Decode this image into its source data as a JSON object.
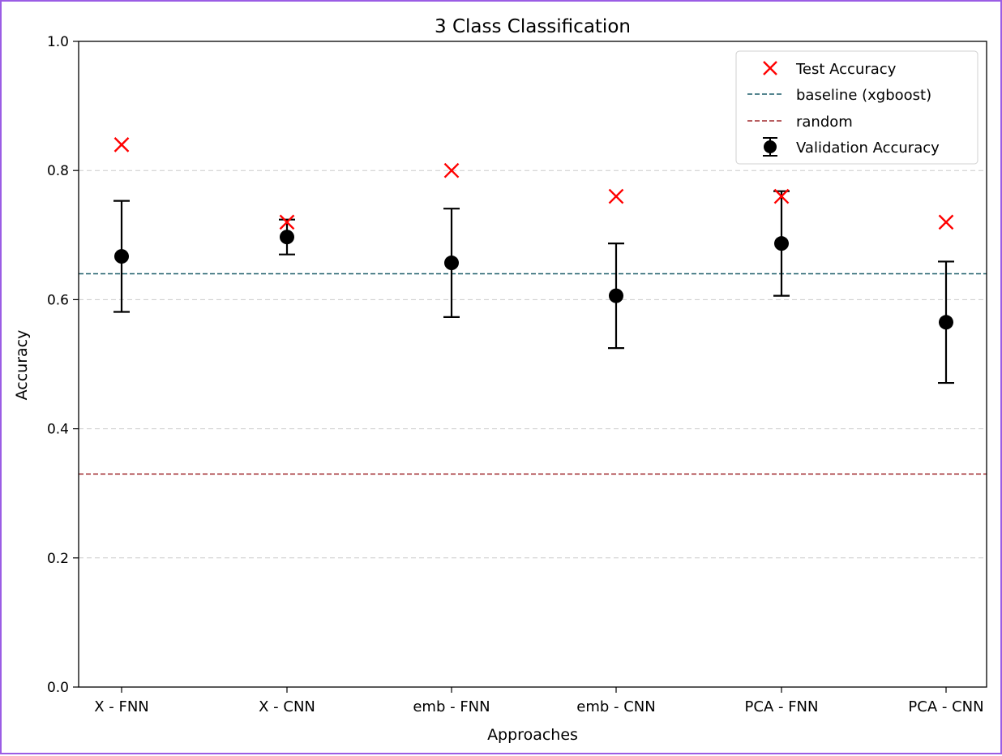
{
  "chart_data": {
    "type": "scatter",
    "title": "3 Class Classification",
    "xlabel": "Approaches",
    "ylabel": "Accuracy",
    "ylim": [
      0.0,
      1.0
    ],
    "yticks": [
      "0.0",
      "0.2",
      "0.4",
      "0.6",
      "0.8",
      "1.0"
    ],
    "grid": "horizontal dashed",
    "legend_position": "top-right",
    "categories": [
      "X - FNN",
      "X - CNN",
      "emb - FNN",
      "emb - CNN",
      "PCA - FNN",
      "PCA - CNN"
    ],
    "series": [
      {
        "name": "Test Accuracy",
        "marker": "x",
        "color": "#ff0000",
        "values": [
          0.84,
          0.72,
          0.8,
          0.76,
          0.76,
          0.72
        ]
      },
      {
        "name": "Validation Accuracy",
        "marker": "circle-errorbar",
        "color": "#000000",
        "values": [
          0.667,
          0.697,
          0.657,
          0.606,
          0.687,
          0.565
        ],
        "error": [
          0.086,
          0.027,
          0.084,
          0.081,
          0.081,
          0.094
        ]
      }
    ],
    "reference_lines": [
      {
        "name": "baseline (xgboost)",
        "value": 0.64,
        "color": "#1f5f6b",
        "style": "dashed"
      },
      {
        "name": "random",
        "value": 0.33,
        "color": "#a0282d",
        "style": "dashed"
      }
    ],
    "legend": [
      "Test Accuracy",
      "baseline (xgboost)",
      "random",
      "Validation Accuracy"
    ]
  }
}
